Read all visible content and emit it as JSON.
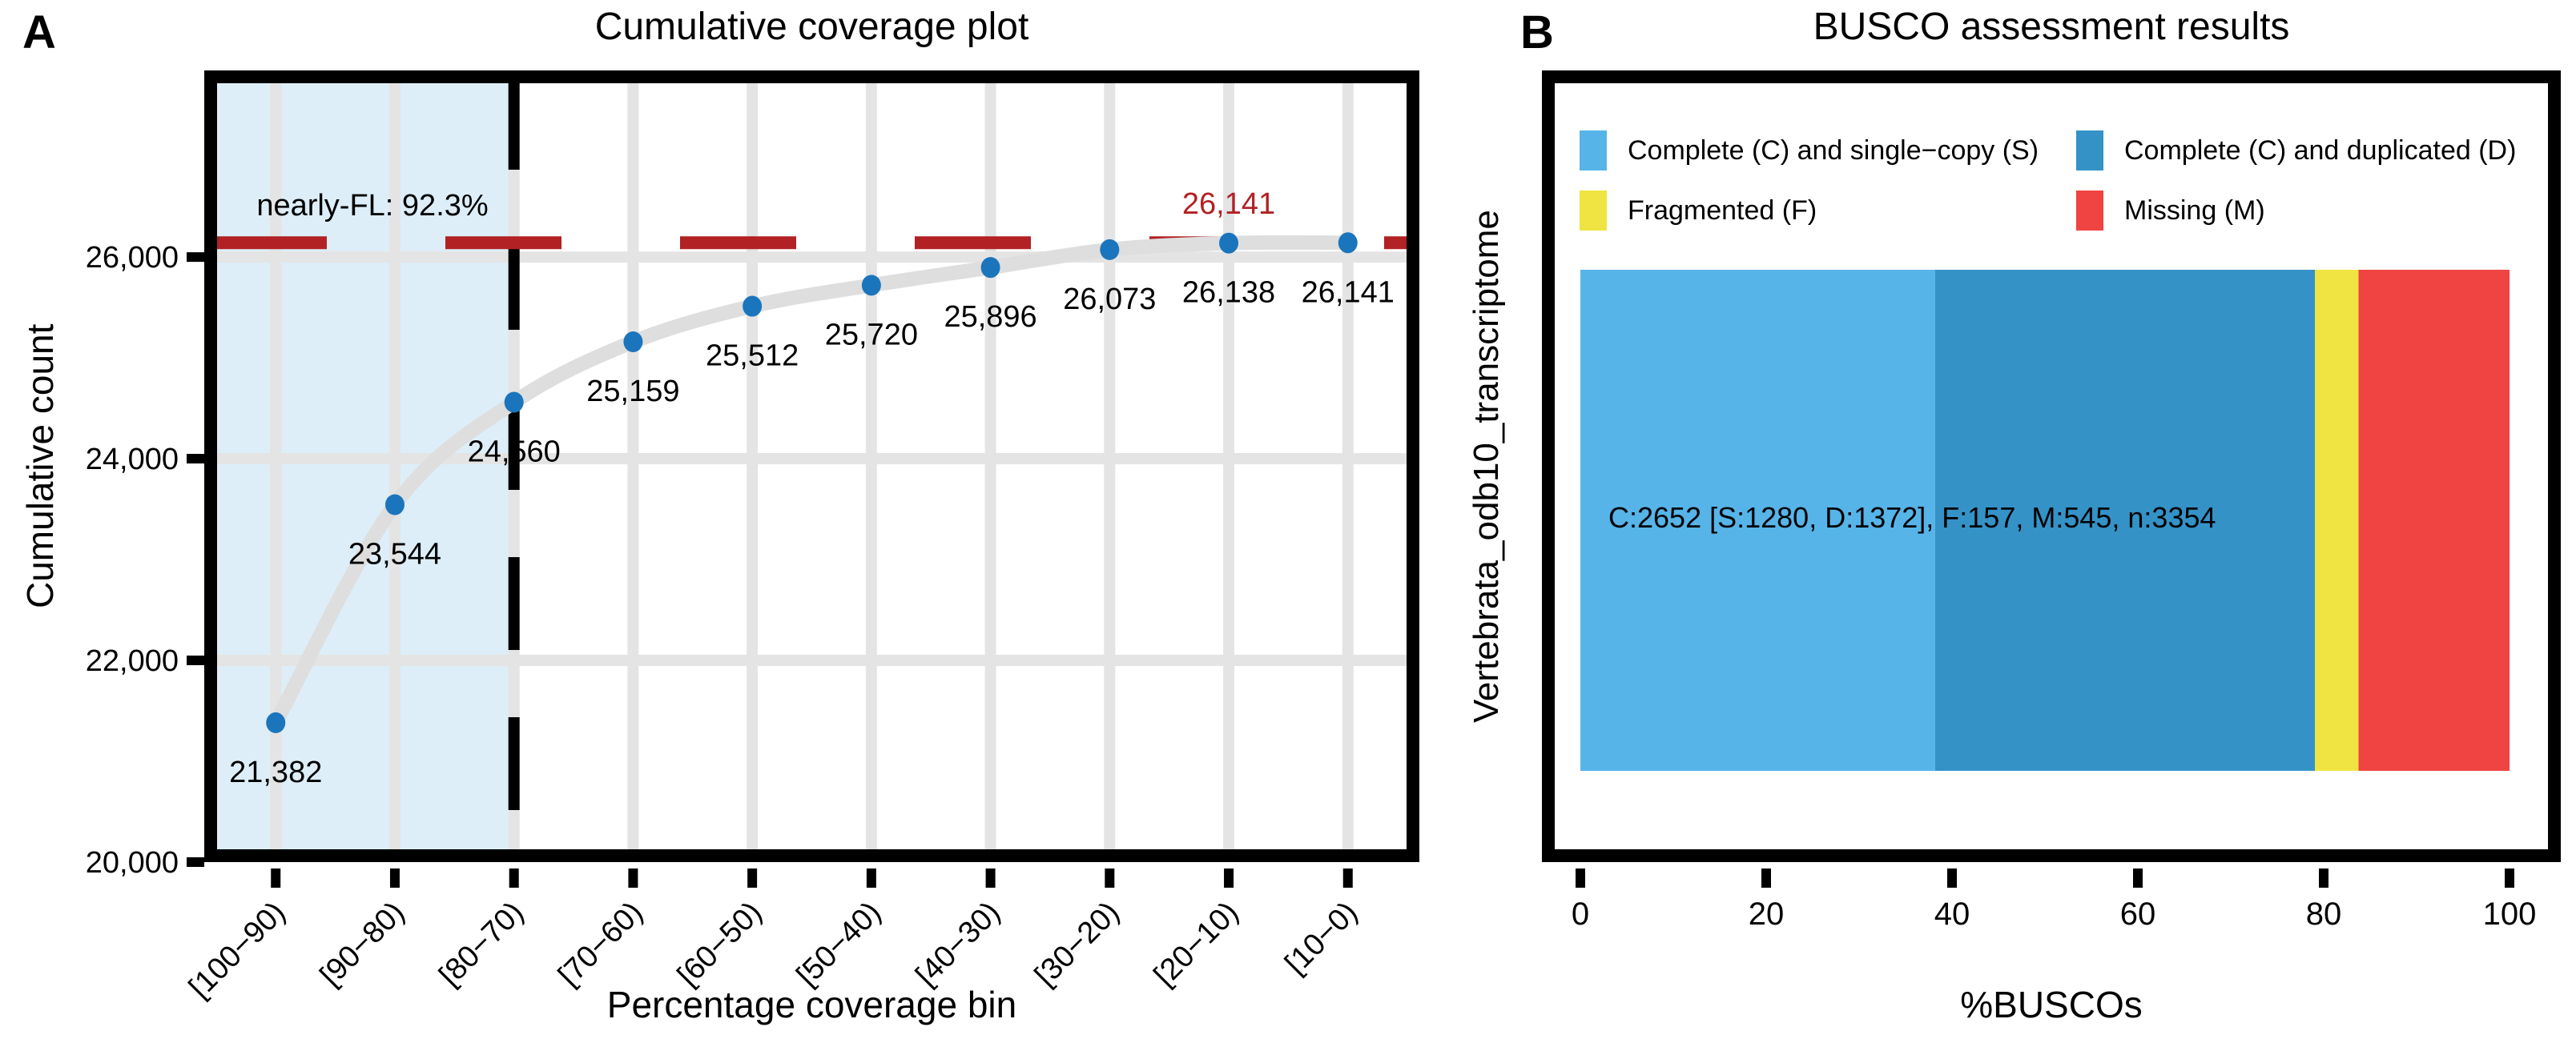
{
  "figure": {
    "panel_a_label": "A",
    "panel_b_label": "B"
  },
  "colors": {
    "point_blue": "#1B75BC",
    "curve_gray": "#DEDEDE",
    "grid_gray": "#E4E4E4",
    "shade_blue": "#DDEEF8",
    "threshold_red": "#B22124",
    "single_copy_blue": "#56B4E9",
    "duplicated_blue": "#3492C7",
    "fragmented_yellow": "#F0E442",
    "missing_red": "#F04442"
  },
  "chart_data": [
    {
      "type": "line",
      "panel": "A",
      "title": "Cumulative coverage plot",
      "xlabel": "Percentage coverage bin",
      "ylabel": "Cumulative count",
      "categories": [
        "[100−90)",
        "[90−80)",
        "[80−70)",
        "[70−60)",
        "[60−50)",
        "[50−40)",
        "[40−30)",
        "[30−20)",
        "[20−10)",
        "[10−0)"
      ],
      "values": [
        21382,
        23544,
        24560,
        25159,
        25512,
        25720,
        25896,
        26073,
        26138,
        26141
      ],
      "point_labels": [
        "21,382",
        "23,544",
        "24,560",
        "25,159",
        "25,512",
        "25,720",
        "25,896",
        "26,073",
        "26,138",
        "26,141"
      ],
      "yticks": {
        "values": [
          20000,
          22000,
          24000,
          26000
        ],
        "labels": [
          "20,000",
          "22,000",
          "24,000",
          "26,000"
        ]
      },
      "ylim": [
        20000,
        27850
      ],
      "grid": true,
      "hline": {
        "value": 26141,
        "label": "26,141"
      },
      "annotation": "nearly-FL: 92.3%",
      "shaded_region": {
        "from_bin": 0,
        "to_bin": 2
      }
    },
    {
      "type": "bar",
      "panel": "B",
      "title": "BUSCO assessment results",
      "xlabel": "%BUSCOs",
      "ylabel": "Vertebrata_odb10_transcriptome",
      "orientation": "horizontal-stacked",
      "n": 3354,
      "series": [
        {
          "name": "Complete (C) and single−copy (S)",
          "key": "S",
          "value": 1280,
          "color": "#56B4E9"
        },
        {
          "name": "Complete (C) and duplicated (D)",
          "key": "D",
          "value": 1372,
          "color": "#3492C7"
        },
        {
          "name": "Fragmented (F)",
          "key": "F",
          "value": 157,
          "color": "#F0E442"
        },
        {
          "name": "Missing (M)",
          "key": "M",
          "value": 545,
          "color": "#F04442"
        }
      ],
      "bar_text": "C:2652 [S:1280, D:1372], F:157, M:545, n:3354",
      "xticks": {
        "values": [
          0,
          20,
          40,
          60,
          80,
          100
        ],
        "labels": [
          "0",
          "20",
          "40",
          "60",
          "80",
          "100"
        ]
      },
      "xlim": [
        0,
        100
      ],
      "grid": false,
      "legend": [
        {
          "label": "Complete (C) and single−copy (S)",
          "color": "#56B4E9"
        },
        {
          "label": "Complete (C) and duplicated (D)",
          "color": "#3492C7"
        },
        {
          "label": "Fragmented (F)",
          "color": "#F0E442"
        },
        {
          "label": "Missing (M)",
          "color": "#F04442"
        }
      ],
      "legend_position": "top"
    }
  ]
}
